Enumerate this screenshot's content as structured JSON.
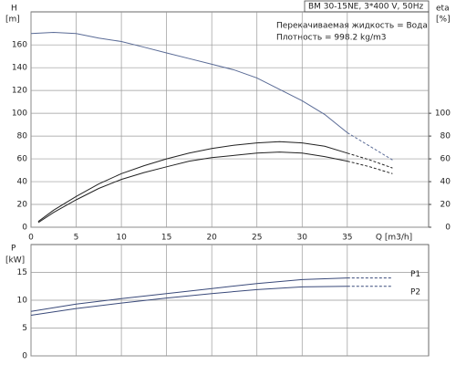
{
  "chart_data": [
    {
      "type": "line",
      "title": "BM 30-15NE, 3*400 V, 50Hz",
      "annotations": [
        "Перекачиваемая жидкость = Вода",
        "Плотность = 998.2 kg/m3"
      ],
      "y_label": "H",
      "y_unit": "[m]",
      "y2_label": "eta",
      "y2_unit": "[%]",
      "x_label": "Q [m3/h]",
      "xlim": [
        0,
        44
      ],
      "xticks": [
        0,
        5,
        10,
        15,
        20,
        25,
        30,
        35
      ],
      "ylim": [
        0,
        189
      ],
      "yticks": [
        0,
        20,
        40,
        60,
        80,
        100,
        120,
        140,
        160
      ],
      "y2lim": [
        0,
        189
      ],
      "y2ticks": [
        0,
        20,
        40,
        60,
        80,
        100
      ],
      "grid": true,
      "dash_from": 35,
      "series": [
        {
          "color": "#5a6b96",
          "x": [
            0,
            2.5,
            5,
            7.5,
            10,
            12.5,
            15,
            17.5,
            20,
            22.5,
            25,
            27.5,
            30,
            32.5,
            35,
            37.5,
            40
          ],
          "values": [
            170,
            171,
            170,
            166,
            163,
            158,
            153,
            148,
            143,
            138,
            131,
            121,
            111,
            99,
            83,
            71,
            59
          ]
        },
        {
          "color": "#222222",
          "axis": "y2",
          "x": [
            0.8,
            2.5,
            5,
            7.5,
            10,
            12.5,
            15,
            17.5,
            20,
            22.5,
            25,
            27.5,
            30,
            32.5,
            35,
            37.5,
            40
          ],
          "values": [
            5,
            15,
            27,
            38,
            47,
            54,
            60,
            65,
            69,
            72,
            74,
            75,
            74,
            71,
            65,
            59,
            52
          ]
        },
        {
          "color": "#222222",
          "axis": "y2",
          "x": [
            0.8,
            2.5,
            5,
            7.5,
            10,
            12.5,
            15,
            17.5,
            20,
            22.5,
            25,
            27.5,
            30,
            32.5,
            35,
            37.5,
            40
          ],
          "values": [
            4,
            13,
            24,
            34,
            42,
            48,
            53,
            58,
            61,
            63,
            65,
            66,
            65,
            62,
            58,
            53,
            47
          ]
        }
      ]
    },
    {
      "type": "line",
      "y_label": "P",
      "y_unit": "[kW]",
      "xlim": [
        0,
        44
      ],
      "xticks": [
        0,
        5,
        10,
        15,
        20,
        25,
        30,
        35
      ],
      "ylim": [
        0,
        20
      ],
      "yticks": [
        0,
        5,
        10,
        15
      ],
      "grid": true,
      "dash_from": 35,
      "series": [
        {
          "name": "P1",
          "color": "#3a4a7a",
          "x": [
            0,
            5,
            10,
            15,
            20,
            25,
            30,
            35,
            40
          ],
          "values": [
            8,
            9.3,
            10.3,
            11.2,
            12.1,
            13,
            13.7,
            14,
            14
          ]
        },
        {
          "name": "P2",
          "color": "#3a4a7a",
          "x": [
            0,
            5,
            10,
            15,
            20,
            25,
            30,
            35,
            40
          ],
          "values": [
            7.3,
            8.5,
            9.5,
            10.4,
            11.2,
            11.9,
            12.4,
            12.5,
            12.5
          ]
        }
      ]
    }
  ]
}
